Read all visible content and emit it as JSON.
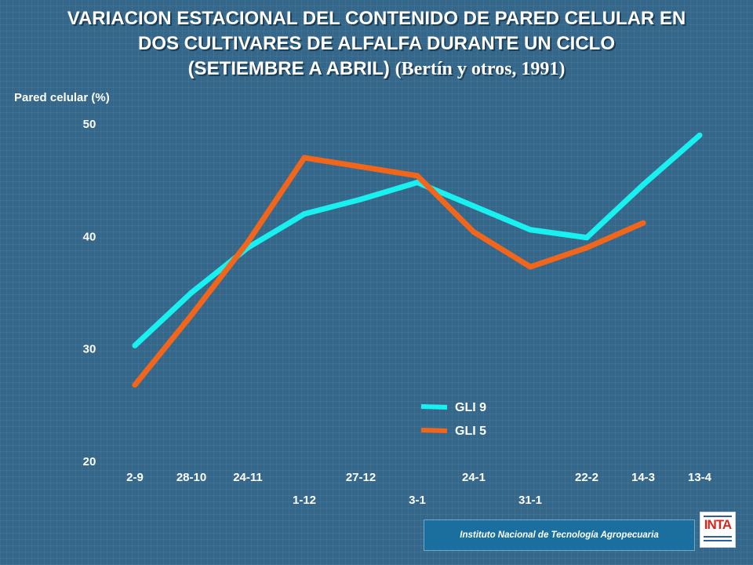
{
  "header": {
    "title_line1": "VARIACION ESTACIONAL DEL CONTENIDO DE PARED CELULAR EN",
    "title_line2": "DOS CULTIVARES DE ALFALFA DURANTE UN CICLO",
    "title_line3": "(SETIEMBRE A ABRIL)",
    "citation": "(Bertín y otros, 1991)"
  },
  "footer": {
    "institution": "Instituto Nacional de Tecnología Agropecuaria",
    "logo_text": "INTA"
  },
  "colors": {
    "background": "#35678a",
    "gli9": "#19f1f1",
    "gli5": "#f2661c",
    "text": "#ffffff"
  },
  "chart_data": {
    "type": "line",
    "ylabel": "Pared celular (%)",
    "ylim": [
      20,
      50
    ],
    "yticks": [
      20,
      30,
      40,
      50
    ],
    "x_labels": [
      "2-9",
      "28-10",
      "24-11",
      "1-12",
      "27-12",
      "3-1",
      "24-1",
      "31-1",
      "22-2",
      "14-3",
      "13-4"
    ],
    "x_label_rows": [
      0,
      0,
      0,
      1,
      0,
      1,
      0,
      1,
      0,
      0,
      0
    ],
    "grid": false,
    "legend_position": "bottom-center",
    "series": [
      {
        "name": "GLI 9",
        "color": "#19f1f1",
        "points": [
          {
            "x": "2-9",
            "y": 30.3
          },
          {
            "x": "28-10",
            "y": 35.0
          },
          {
            "x": "24-11",
            "y": 39.0
          },
          {
            "x": "1-12",
            "y": 42.0
          },
          {
            "x": "27-12",
            "y": 43.3
          },
          {
            "x": "3-1",
            "y": 44.8
          },
          {
            "x": "24-1",
            "y": 42.7
          },
          {
            "x": "31-1",
            "y": 40.6
          },
          {
            "x": "22-2",
            "y": 39.9
          },
          {
            "x": "14-3",
            "y": 44.6
          },
          {
            "x": "13-4",
            "y": 49.0
          }
        ]
      },
      {
        "name": "GLI 5",
        "color": "#f2661c",
        "points": [
          {
            "x": "2-9",
            "y": 26.8
          },
          {
            "x": "28-10",
            "y": 33.0
          },
          {
            "x": "24-11",
            "y": 39.5
          },
          {
            "x": "1-12",
            "y": 47.0
          },
          {
            "x": "27-12",
            "y": 46.2
          },
          {
            "x": "3-1",
            "y": 45.4
          },
          {
            "x": "24-1",
            "y": 40.4
          },
          {
            "x": "31-1",
            "y": 37.3
          },
          {
            "x": "22-2",
            "y": 39.0
          },
          {
            "x": "14-3",
            "y": 41.2
          }
        ]
      }
    ]
  }
}
